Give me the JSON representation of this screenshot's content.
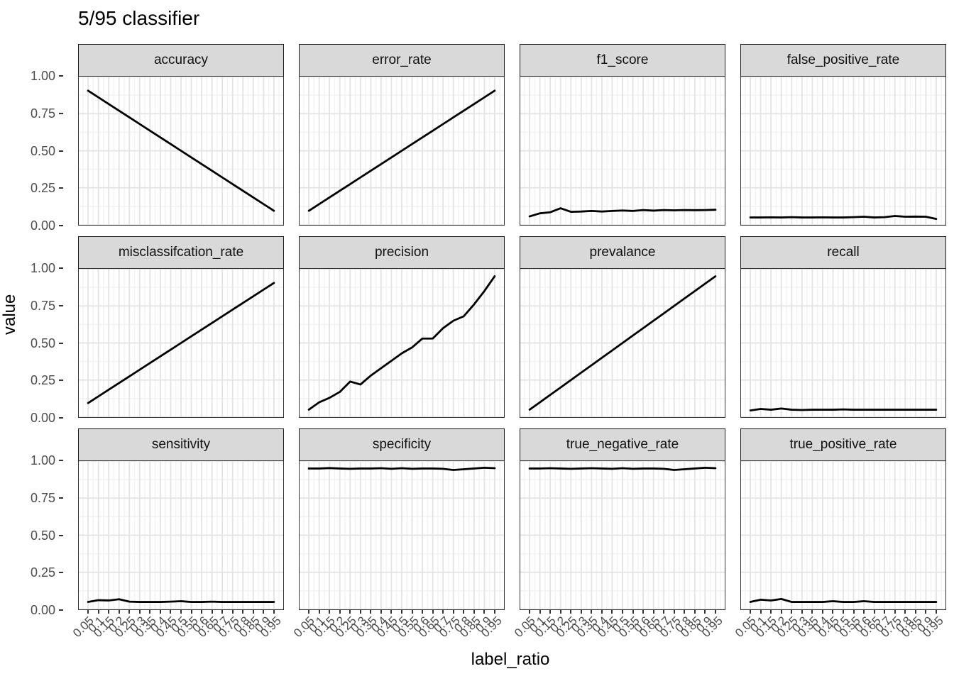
{
  "title": "5/95 classifier",
  "axes": {
    "x_title": "label_ratio",
    "y_title": "value",
    "x_tick_labels": [
      "0.05",
      "0.1",
      "0.15",
      "0.2",
      "0.25",
      "0.3",
      "0.35",
      "0.4",
      "0.45",
      "0.5",
      "0.55",
      "0.6",
      "0.65",
      "0.7",
      "0.75",
      "0.8",
      "0.85",
      "0.9",
      "0.95"
    ],
    "y_tick_labels": [
      "1.00",
      "0.75",
      "0.50",
      "0.25",
      "0.00"
    ]
  },
  "colors": {
    "line": "#000000",
    "strip_bg": "#d9d9d9",
    "panel_border": "#333333",
    "grid_major": "#e3e3e3",
    "grid_minor": "#f2f2f2",
    "axis_text": "#4d4d4d"
  },
  "chart_data": {
    "type": "line",
    "title": "5/95 classifier",
    "xlabel": "label_ratio",
    "ylabel": "value",
    "layout": "facet_wrap 3 rows x 4 cols, shared axes, grid major+minor on, no legend",
    "ylim": [
      0,
      1
    ],
    "y_ticks": [
      0,
      0.25,
      0.5,
      0.75,
      1.0
    ],
    "x": [
      0.05,
      0.1,
      0.15,
      0.2,
      0.25,
      0.3,
      0.35,
      0.4,
      0.45,
      0.5,
      0.55,
      0.6,
      0.65,
      0.7,
      0.75,
      0.8,
      0.85,
      0.9,
      0.95
    ],
    "facets": [
      {
        "name": "accuracy",
        "values": [
          0.905,
          0.86,
          0.815,
          0.77,
          0.725,
          0.68,
          0.635,
          0.59,
          0.545,
          0.5,
          0.455,
          0.41,
          0.365,
          0.32,
          0.275,
          0.23,
          0.185,
          0.14,
          0.095
        ]
      },
      {
        "name": "error_rate",
        "values": [
          0.095,
          0.14,
          0.185,
          0.23,
          0.275,
          0.32,
          0.365,
          0.41,
          0.455,
          0.5,
          0.545,
          0.59,
          0.635,
          0.68,
          0.725,
          0.77,
          0.815,
          0.86,
          0.905
        ]
      },
      {
        "name": "f1_score",
        "values": [
          0.057,
          0.078,
          0.085,
          0.112,
          0.088,
          0.09,
          0.094,
          0.09,
          0.094,
          0.097,
          0.094,
          0.1,
          0.096,
          0.1,
          0.098,
          0.1,
          0.099,
          0.1,
          0.102
        ]
      },
      {
        "name": "false_positive_rate",
        "values": [
          0.05,
          0.05,
          0.051,
          0.05,
          0.052,
          0.05,
          0.05,
          0.051,
          0.05,
          0.05,
          0.052,
          0.055,
          0.05,
          0.052,
          0.06,
          0.055,
          0.056,
          0.055,
          0.04
        ]
      },
      {
        "name": "misclassifcation_rate",
        "values": [
          0.095,
          0.14,
          0.185,
          0.23,
          0.275,
          0.32,
          0.365,
          0.41,
          0.455,
          0.5,
          0.545,
          0.59,
          0.635,
          0.68,
          0.725,
          0.77,
          0.815,
          0.86,
          0.905
        ]
      },
      {
        "name": "precision",
        "values": [
          0.05,
          0.1,
          0.13,
          0.17,
          0.24,
          0.22,
          0.28,
          0.33,
          0.38,
          0.43,
          0.47,
          0.53,
          0.53,
          0.6,
          0.65,
          0.68,
          0.76,
          0.85,
          0.95
        ]
      },
      {
        "name": "prevalance",
        "values": [
          0.05,
          0.1,
          0.15,
          0.2,
          0.25,
          0.3,
          0.35,
          0.4,
          0.45,
          0.5,
          0.55,
          0.6,
          0.65,
          0.7,
          0.75,
          0.8,
          0.85,
          0.9,
          0.95
        ]
      },
      {
        "name": "recall",
        "values": [
          0.045,
          0.055,
          0.05,
          0.058,
          0.05,
          0.048,
          0.05,
          0.05,
          0.05,
          0.052,
          0.05,
          0.05,
          0.05,
          0.05,
          0.05,
          0.05,
          0.05,
          0.05,
          0.05
        ]
      },
      {
        "name": "sensitivity",
        "values": [
          0.05,
          0.062,
          0.06,
          0.068,
          0.052,
          0.05,
          0.05,
          0.05,
          0.052,
          0.055,
          0.05,
          0.05,
          0.052,
          0.05,
          0.05,
          0.05,
          0.05,
          0.05,
          0.05
        ]
      },
      {
        "name": "specificity",
        "values": [
          0.95,
          0.95,
          0.953,
          0.95,
          0.948,
          0.95,
          0.95,
          0.952,
          0.948,
          0.952,
          0.948,
          0.95,
          0.95,
          0.948,
          0.94,
          0.945,
          0.95,
          0.955,
          0.952
        ]
      },
      {
        "name": "true_negative_rate",
        "values": [
          0.95,
          0.95,
          0.952,
          0.95,
          0.948,
          0.95,
          0.952,
          0.95,
          0.948,
          0.952,
          0.948,
          0.95,
          0.95,
          0.948,
          0.94,
          0.945,
          0.95,
          0.955,
          0.952
        ]
      },
      {
        "name": "true_positive_rate",
        "values": [
          0.05,
          0.065,
          0.06,
          0.07,
          0.05,
          0.05,
          0.05,
          0.05,
          0.055,
          0.05,
          0.05,
          0.055,
          0.05,
          0.05,
          0.05,
          0.05,
          0.05,
          0.05,
          0.05
        ]
      }
    ]
  }
}
